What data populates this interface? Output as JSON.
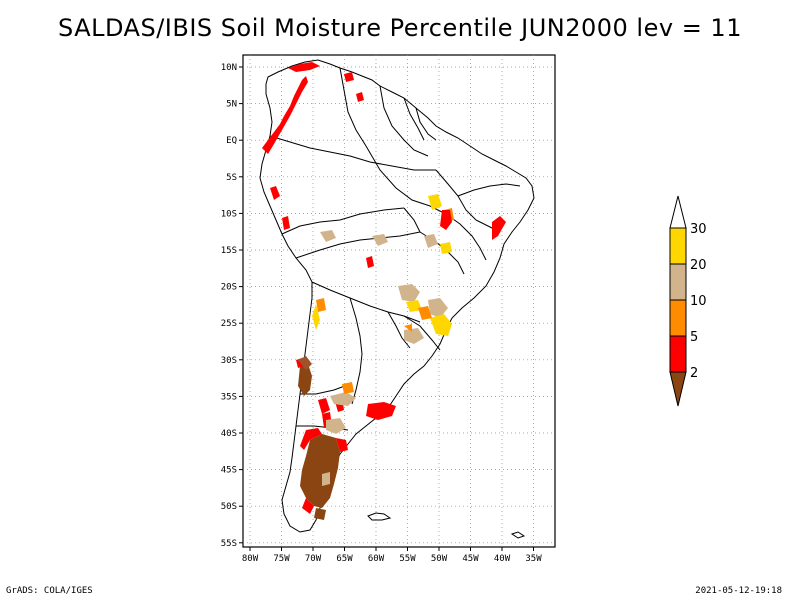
{
  "title": "SALDAS/IBIS Soil Moisture Percentile JUN2000 lev = 11",
  "footer": {
    "left": "GrADS: COLA/IGES",
    "right": "2021-05-12-19:18"
  },
  "map": {
    "lon_range": [
      -80,
      -33
    ],
    "lat_range": [
      -56,
      12
    ],
    "x_ticks": [
      "80W",
      "75W",
      "70W",
      "65W",
      "60W",
      "55W",
      "50W",
      "45W",
      "40W",
      "35W"
    ],
    "y_ticks": [
      "10N",
      "5N",
      "EQ",
      "5S",
      "10S",
      "15S",
      "20S",
      "25S",
      "30S",
      "35S",
      "40S",
      "45S",
      "50S",
      "55S"
    ],
    "grid": true
  },
  "legend": {
    "labels": [
      "30",
      "20",
      "10",
      "5",
      "2"
    ],
    "colors": {
      "top": "#ffffff",
      "30": "#ffd700",
      "20": "#d2b48c",
      "10": "#ff8c00",
      "5": "#ff0000",
      "2": "#8b4513"
    }
  }
}
